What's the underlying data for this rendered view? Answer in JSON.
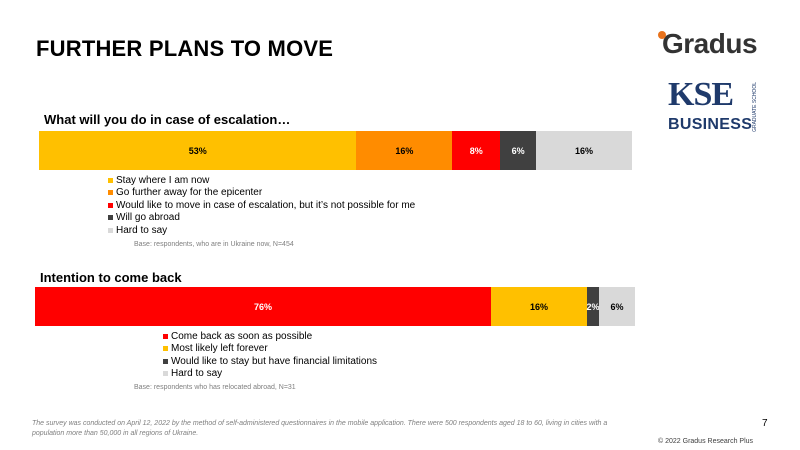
{
  "page": {
    "title": "FURTHER PLANS TO MOVE",
    "page_number": "7",
    "copyright": "© 2022 Gradus Research Plus",
    "footnote": "The survey was conducted on April 12, 2022 by the method of self-administered questionnaires in the mobile application. There were 500 respondents aged 18 to 60, living in cities with a population more than 50,000 in all regions of Ukraine."
  },
  "logos": {
    "gradus": "Gradus",
    "kse": "KSE",
    "kse_sub": "GRADUATE SCHOOL",
    "kse_business": "BUSINESS",
    "gradus_dot_color": "#e8721c",
    "kse_color": "#1f3a6b"
  },
  "chart_data": [
    {
      "type": "bar",
      "orientation": "horizontal-stacked-100",
      "title": "What will you do in case of escalation…",
      "base_note": "Base: respondents, who are in Ukraine now, N=454",
      "legend_position": "bottom-left",
      "series": [
        {
          "name": "Stay where I am now",
          "value": 53,
          "label": "53%",
          "color": "#ffc000",
          "text_color": "#000000"
        },
        {
          "name": "Go further away for the epicenter",
          "value": 16,
          "label": "16%",
          "color": "#ff8c00",
          "text_color": "#000000"
        },
        {
          "name": "Would like to move in case of escalation, but it’s not possible for me",
          "value": 8,
          "label": "8%",
          "color": "#ff0000",
          "text_color": "#ffffff"
        },
        {
          "name": "Will go abroad",
          "value": 6,
          "label": "6%",
          "color": "#404040",
          "text_color": "#ffffff"
        },
        {
          "name": "Hard to say",
          "value": 16,
          "label": "16%",
          "color": "#d9d9d9",
          "text_color": "#000000"
        }
      ]
    },
    {
      "type": "bar",
      "orientation": "horizontal-stacked-100",
      "title": "Intention to come back",
      "base_note": "Base: respondents who has relocated abroad, N=31",
      "legend_position": "bottom-left",
      "series": [
        {
          "name": "Come back as soon as possible",
          "value": 76,
          "label": "76%",
          "color": "#ff0000",
          "text_color": "#ffffff"
        },
        {
          "name": "Most likely left forever",
          "value": 16,
          "label": "16%",
          "color": "#ffc000",
          "text_color": "#000000"
        },
        {
          "name": "Would like to stay but have financial limitations",
          "value": 2,
          "label": "2%",
          "color": "#404040",
          "text_color": "#ffffff"
        },
        {
          "name": "Hard to say",
          "value": 6,
          "label": "6%",
          "color": "#d9d9d9",
          "text_color": "#000000"
        }
      ]
    }
  ]
}
